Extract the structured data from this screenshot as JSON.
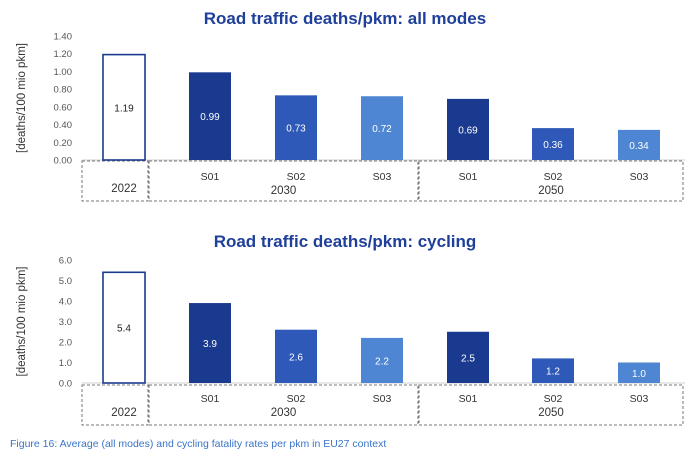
{
  "colors": {
    "title": "#1e3f9a",
    "caption": "#3a74c8",
    "bar_dark": "#1a3a8f",
    "bar_mid": "#2f59b8",
    "bar_light": "#4f86d4",
    "bar_outline": "#1a3a8f"
  },
  "caption": "Figure 16: Average (all modes) and cycling fatality rates per pkm in EU27 context",
  "chart_data": [
    {
      "type": "bar",
      "title": "Road traffic deaths/pkm: all modes",
      "ylabel": "[deaths/100 mio pkm]",
      "ylim": [
        0,
        1.4
      ],
      "yticks": [
        "0.00",
        "0.20",
        "0.40",
        "0.60",
        "0.80",
        "1.00",
        "1.20",
        "1.40"
      ],
      "categories": [
        "2022",
        "S01",
        "S02",
        "S03",
        "S01",
        "S02",
        "S03"
      ],
      "values": [
        1.19,
        0.99,
        0.73,
        0.72,
        0.69,
        0.36,
        0.34
      ],
      "value_labels": [
        "1.19",
        "0.99",
        "0.73",
        "0.72",
        "0.69",
        "0.36",
        "0.34"
      ],
      "groups": [
        {
          "label": "2022",
          "start": 0,
          "end": 0
        },
        {
          "label": "2030",
          "start": 1,
          "end": 3
        },
        {
          "label": "2050",
          "start": 4,
          "end": 6
        }
      ]
    },
    {
      "type": "bar",
      "title": "Road traffic deaths/pkm: cycling",
      "ylabel": "[deaths/100 mio pkm]",
      "ylim": [
        0,
        6
      ],
      "yticks": [
        "0.0",
        "1.0",
        "2.0",
        "3.0",
        "4.0",
        "5.0",
        "6.0"
      ],
      "categories": [
        "2022",
        "S01",
        "S02",
        "S03",
        "S01",
        "S02",
        "S03"
      ],
      "values": [
        5.4,
        3.9,
        2.6,
        2.2,
        2.5,
        1.2,
        1.0
      ],
      "value_labels": [
        "5.4",
        "3.9",
        "2.6",
        "2.2",
        "2.5",
        "1.2",
        "1.0"
      ],
      "groups": [
        {
          "label": "2022",
          "start": 0,
          "end": 0
        },
        {
          "label": "2030",
          "start": 1,
          "end": 3
        },
        {
          "label": "2050",
          "start": 4,
          "end": 6
        }
      ]
    }
  ]
}
